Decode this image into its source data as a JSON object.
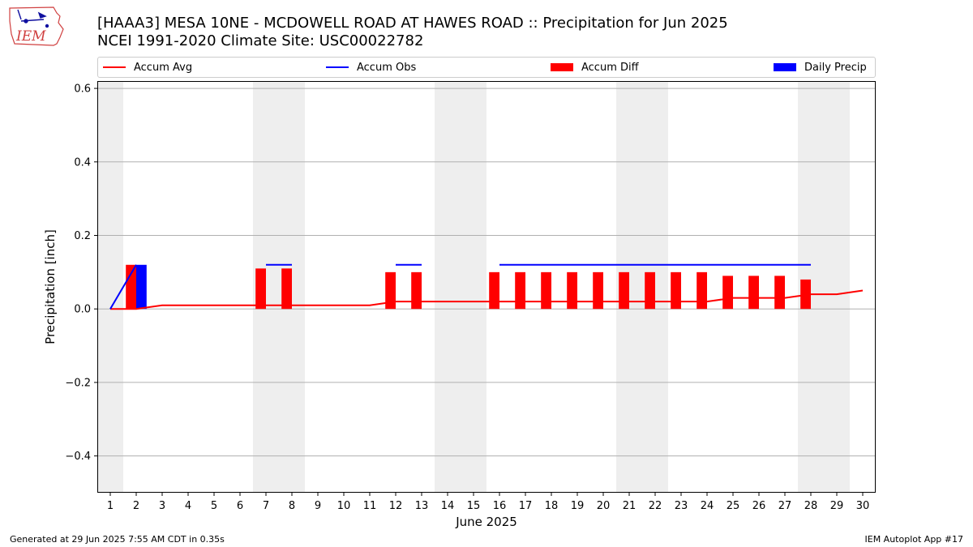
{
  "header": {
    "title_line1": "[HAAA3] MESA 10NE - MCDOWELL ROAD AT HAWES ROAD :: Precipitation for Jun 2025",
    "title_line2": "NCEI 1991-2020 Climate Site: USC00022782"
  },
  "logo": {
    "text": "IEM"
  },
  "footer": {
    "generated": "Generated at 29 Jun 2025 7:55 AM CDT in 0.35s",
    "app": "IEM Autoplot App #17"
  },
  "legend": {
    "accum_avg": "Accum Avg",
    "accum_obs": "Accum Obs",
    "accum_diff": "Accum Diff",
    "daily_precip": "Daily Precip"
  },
  "colors": {
    "avg": "#ff0000",
    "obs": "#0000ff",
    "diff": "#ff0000",
    "daily": "#0000ff",
    "weekend": "#eeeeee",
    "grid": "#b0b0b0"
  },
  "chart_data": {
    "type": "bar",
    "title": "[HAAA3] MESA 10NE - MCDOWELL ROAD AT HAWES ROAD :: Precipitation for Jun 2025",
    "subtitle": "NCEI 1991-2020 Climate Site: USC00022782",
    "xlabel": "June 2025",
    "ylabel": "Precipitation [inch]",
    "xlim": [
      0.5,
      30.5
    ],
    "ylim": [
      -0.5,
      0.62
    ],
    "yticks": [
      -0.4,
      -0.2,
      0.0,
      0.2,
      0.4,
      0.6
    ],
    "ytick_labels": [
      "−0.4",
      "−0.2",
      "0.0",
      "0.2",
      "0.4",
      "0.6"
    ],
    "days": [
      1,
      2,
      3,
      4,
      5,
      6,
      7,
      8,
      9,
      10,
      11,
      12,
      13,
      14,
      15,
      16,
      17,
      18,
      19,
      20,
      21,
      22,
      23,
      24,
      25,
      26,
      27,
      28,
      29,
      30
    ],
    "weekend_days": [
      1,
      7,
      8,
      14,
      15,
      21,
      22,
      28,
      29
    ],
    "grid": "y",
    "legend_position": "top",
    "series": [
      {
        "name": "Accum Avg",
        "kind": "line",
        "x": [
          1,
          2,
          3,
          4,
          5,
          6,
          7,
          8,
          9,
          10,
          11,
          12,
          13,
          14,
          15,
          16,
          17,
          18,
          19,
          20,
          21,
          22,
          23,
          24,
          25,
          26,
          27,
          28,
          29,
          30
        ],
        "values": [
          0.0,
          0.0,
          0.01,
          0.01,
          0.01,
          0.01,
          0.01,
          0.01,
          0.01,
          0.01,
          0.01,
          0.02,
          0.02,
          0.02,
          0.02,
          0.02,
          0.02,
          0.02,
          0.02,
          0.02,
          0.02,
          0.02,
          0.02,
          0.02,
          0.03,
          0.03,
          0.03,
          0.04,
          0.04,
          0.05
        ]
      },
      {
        "name": "Accum Obs",
        "kind": "line",
        "x": [
          1,
          2,
          3,
          4,
          5,
          6,
          7,
          8,
          9,
          10,
          11,
          12,
          13,
          14,
          15,
          16,
          17,
          18,
          19,
          20,
          21,
          22,
          23,
          24,
          25,
          26,
          27,
          28
        ],
        "values": [
          0.0,
          0.12,
          null,
          null,
          null,
          null,
          0.12,
          0.12,
          null,
          null,
          null,
          0.12,
          0.12,
          null,
          null,
          0.12,
          0.12,
          0.12,
          0.12,
          0.12,
          0.12,
          0.12,
          0.12,
          0.12,
          0.12,
          0.12,
          0.12,
          0.12
        ]
      },
      {
        "name": "Accum Diff",
        "kind": "bar",
        "x": [
          2,
          7,
          8,
          12,
          13,
          16,
          17,
          18,
          19,
          20,
          21,
          22,
          23,
          24,
          25,
          26,
          27,
          28
        ],
        "values": [
          0.12,
          0.11,
          0.11,
          0.1,
          0.1,
          0.1,
          0.1,
          0.1,
          0.1,
          0.1,
          0.1,
          0.1,
          0.1,
          0.1,
          0.09,
          0.09,
          0.09,
          0.08
        ]
      },
      {
        "name": "Daily Precip",
        "kind": "bar",
        "x": [
          2
        ],
        "values": [
          0.12
        ]
      }
    ]
  }
}
